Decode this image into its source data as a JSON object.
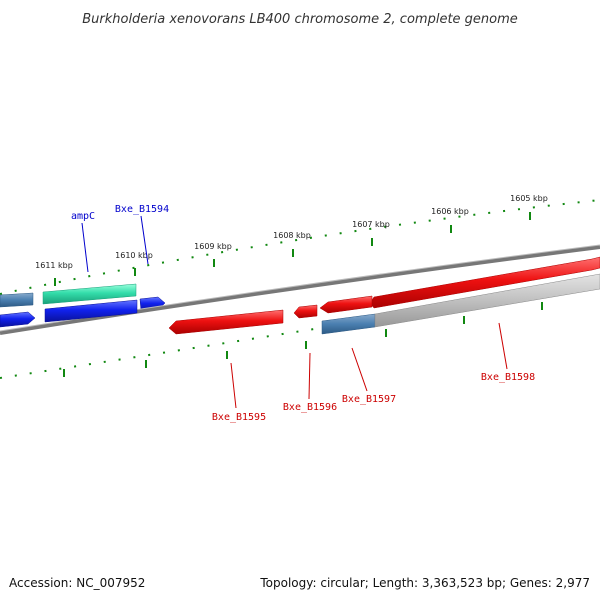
{
  "title": "Burkholderia xenovorans LB400 chromosome 2, complete genome",
  "accession_text": "Accession: NC_007952",
  "summary_text": "Topology: circular; Length: 3,363,523 bp; Genes: 2,977",
  "ticks": [
    "1611 kbp",
    "1610 kbp",
    "1609 kbp",
    "1608 kbp",
    "1607 kbp",
    "1606 kbp",
    "1605 kbp"
  ],
  "labels": {
    "ampC": "ampC",
    "b1594": "Bxe_B1594",
    "b1595": "Bxe_B1595",
    "b1596": "Bxe_B1596",
    "b1597": "Bxe_B1597",
    "b1598": "Bxe_B1598"
  },
  "colors": {
    "forward_strand": "#2233dd",
    "reverse_strand": "#dd1111",
    "rna": "#33ddaa",
    "pseudo": "#5588bb",
    "tick": "#118811",
    "backbone": "#777777"
  }
}
